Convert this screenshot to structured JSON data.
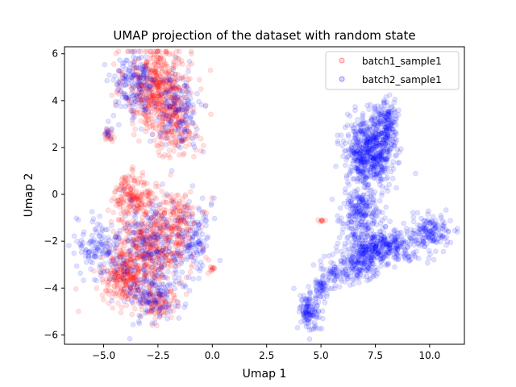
{
  "chart_data": {
    "type": "scatter",
    "title": "UMAP projection of the dataset with random state",
    "xlabel": "Umap 1",
    "ylabel": "Umap 2",
    "xlim": [
      -6.8,
      11.6
    ],
    "ylim": [
      -6.4,
      6.3
    ],
    "xticks": [
      -5.0,
      -2.5,
      0.0,
      2.5,
      5.0,
      7.5,
      10.0
    ],
    "xtick_labels": [
      "−5.0",
      "−2.5",
      "0.0",
      "2.5",
      "5.0",
      "7.5",
      "10.0"
    ],
    "yticks": [
      -6,
      -4,
      -2,
      0,
      2,
      4,
      6
    ],
    "ytick_labels": [
      "−6",
      "−4",
      "−2",
      "0",
      "2",
      "4",
      "6"
    ],
    "grid": false,
    "legend_position": "top-right",
    "series": [
      {
        "name": "batch1_sample1",
        "color": "#ff0000",
        "alpha": 0.12,
        "clusters": [
          {
            "cx": -2.5,
            "cy": 4.6,
            "sx": 0.75,
            "sy": 0.9,
            "n": 520
          },
          {
            "cx": -1.8,
            "cy": 2.8,
            "sx": 0.6,
            "sy": 0.6,
            "n": 160
          },
          {
            "cx": -3.6,
            "cy": 0.0,
            "sx": 0.45,
            "sy": 0.45,
            "n": 170
          },
          {
            "cx": -2.8,
            "cy": -2.2,
            "sx": 0.9,
            "sy": 0.9,
            "n": 480
          },
          {
            "cx": -4.0,
            "cy": -3.6,
            "sx": 0.55,
            "sy": 0.5,
            "n": 240
          },
          {
            "cx": -1.6,
            "cy": -1.0,
            "sx": 0.5,
            "sy": 0.6,
            "n": 120
          },
          {
            "cx": -2.6,
            "cy": -4.6,
            "sx": 0.5,
            "sy": 0.45,
            "n": 110
          },
          {
            "cx": -4.8,
            "cy": 2.5,
            "sx": 0.12,
            "sy": 0.15,
            "n": 18
          },
          {
            "cx": 0.0,
            "cy": -3.2,
            "sx": 0.1,
            "sy": 0.1,
            "n": 10
          },
          {
            "cx": 5.0,
            "cy": -1.1,
            "sx": 0.1,
            "sy": 0.06,
            "n": 8
          }
        ]
      },
      {
        "name": "batch2_sample1",
        "color": "#0000ff",
        "alpha": 0.12,
        "clusters": [
          {
            "cx": -3.6,
            "cy": 4.6,
            "sx": 0.5,
            "sy": 0.7,
            "n": 170
          },
          {
            "cx": -1.6,
            "cy": 3.6,
            "sx": 0.55,
            "sy": 0.8,
            "n": 150
          },
          {
            "cx": -2.8,
            "cy": -2.4,
            "sx": 1.0,
            "sy": 1.0,
            "n": 260
          },
          {
            "cx": -5.2,
            "cy": -2.2,
            "sx": 0.55,
            "sy": 0.6,
            "n": 120
          },
          {
            "cx": -0.8,
            "cy": -1.8,
            "sx": 0.4,
            "sy": 0.8,
            "n": 100
          },
          {
            "cx": -2.8,
            "cy": -4.4,
            "sx": 0.6,
            "sy": 0.6,
            "n": 120
          },
          {
            "cx": -4.8,
            "cy": 2.7,
            "sx": 0.1,
            "sy": 0.15,
            "n": 12
          },
          {
            "cx": 7.3,
            "cy": 1.9,
            "sx": 0.55,
            "sy": 0.75,
            "n": 650
          },
          {
            "cx": 8.1,
            "cy": 3.2,
            "sx": 0.25,
            "sy": 0.4,
            "n": 100
          },
          {
            "cx": 6.8,
            "cy": -0.6,
            "sx": 0.45,
            "sy": 0.45,
            "n": 200
          },
          {
            "cx": 7.8,
            "cy": -2.2,
            "sx": 0.9,
            "sy": 0.35,
            "n": 380
          },
          {
            "cx": 10.0,
            "cy": -1.6,
            "sx": 0.5,
            "sy": 0.35,
            "n": 150
          },
          {
            "cx": 6.8,
            "cy": -3.0,
            "sx": 0.4,
            "sy": 0.35,
            "n": 150
          },
          {
            "cx": 5.6,
            "cy": -3.3,
            "sx": 0.35,
            "sy": 0.3,
            "n": 70
          },
          {
            "cx": 4.5,
            "cy": -5.0,
            "sx": 0.25,
            "sy": 0.4,
            "n": 120
          },
          {
            "cx": 5.0,
            "cy": -4.1,
            "sx": 0.2,
            "sy": 0.25,
            "n": 50
          }
        ]
      }
    ]
  }
}
